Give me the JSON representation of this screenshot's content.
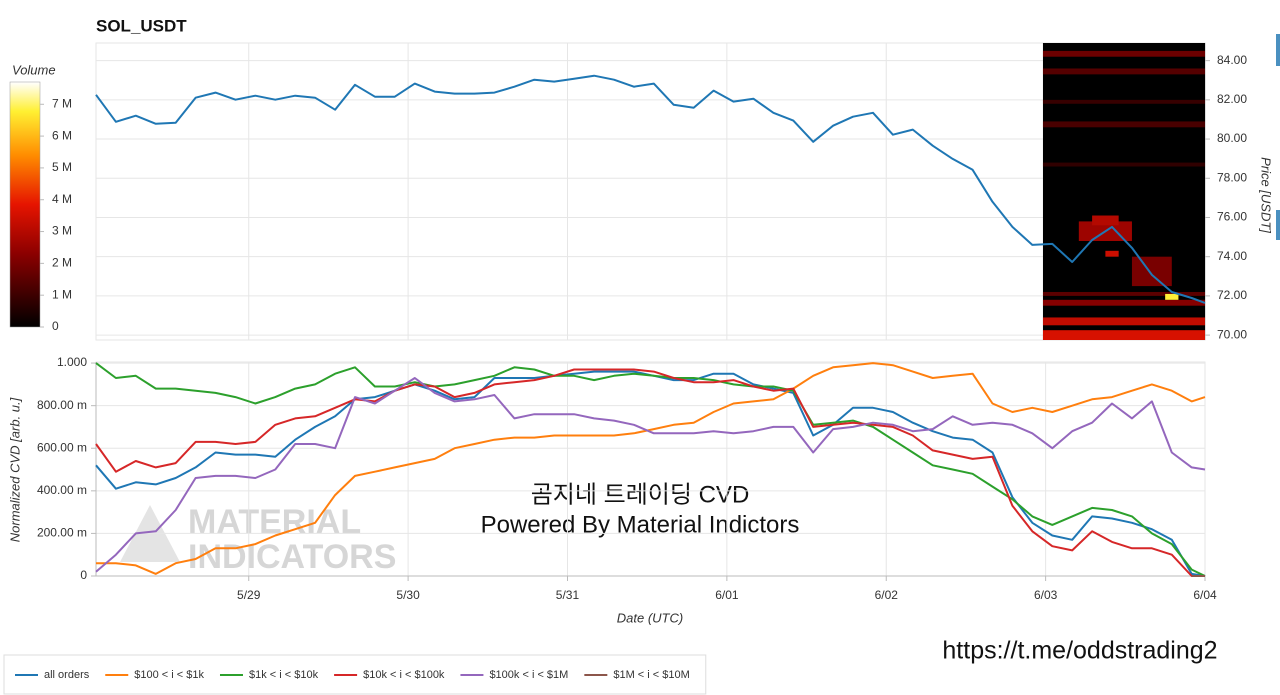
{
  "chart_data": [
    {
      "type": "line",
      "title": "SOL_USDT",
      "y_label": "Price [USDT]",
      "color": "#1f77b4",
      "x": [
        0,
        3,
        6,
        9,
        12,
        15,
        18,
        21,
        24,
        27,
        30,
        33,
        36,
        39,
        42,
        45,
        48,
        51,
        54,
        57,
        60,
        63,
        66,
        69,
        72,
        75,
        78,
        81,
        84,
        87,
        90,
        93,
        96,
        99,
        102,
        105,
        108,
        111,
        114,
        117,
        120,
        123,
        126,
        129,
        132,
        135,
        138,
        141,
        144,
        147,
        150,
        153,
        156,
        159,
        162,
        165,
        167
      ],
      "values": [
        82.26,
        80.88,
        81.19,
        80.78,
        80.83,
        82.11,
        82.37,
        82.01,
        82.21,
        82.01,
        82.21,
        82.11,
        81.5,
        82.77,
        82.16,
        82.16,
        82.83,
        82.42,
        82.32,
        82.32,
        82.37,
        82.67,
        83.03,
        82.93,
        83.08,
        83.23,
        83.03,
        82.67,
        82.83,
        81.75,
        81.6,
        82.47,
        81.91,
        82.06,
        81.34,
        80.94,
        79.86,
        80.68,
        81.14,
        81.34,
        80.22,
        80.48,
        79.66,
        78.99,
        78.43,
        76.8,
        75.52,
        74.6,
        74.65,
        73.73,
        74.85,
        75.52,
        74.45,
        73.07,
        72.2,
        71.89,
        71.64
      ],
      "xlim": [
        0,
        167
      ],
      "ylim": [
        69.75,
        84.9
      ],
      "yticks": [
        {
          "value": 70,
          "label": "70.00"
        },
        {
          "value": 72,
          "label": "72.00"
        },
        {
          "value": 74,
          "label": "74.00"
        },
        {
          "value": 76,
          "label": "76.00"
        },
        {
          "value": 78,
          "label": "78.00"
        },
        {
          "value": 80,
          "label": "80.00"
        },
        {
          "value": 82,
          "label": "82.00"
        },
        {
          "value": 84,
          "label": "84.00"
        }
      ],
      "grid": true,
      "heatmap": {
        "label": "Volume",
        "colorbar_lim": [
          0,
          7700000
        ],
        "colorbar_ticks": [
          0,
          {
            "value": 1000000,
            "label": "1 M"
          },
          {
            "value": 2000000,
            "label": "2 M"
          },
          {
            "value": 3000000,
            "label": "3 M"
          },
          {
            "value": 4000000,
            "label": "4 M"
          },
          {
            "value": 5000000,
            "label": "5 M"
          },
          {
            "value": 6000000,
            "label": "6 M"
          },
          {
            "value": 7000000,
            "label": "7 M"
          }
        ],
        "cells": [
          {
            "x": [
              142.6,
              167
            ],
            "price": [
              69.75,
              70.25
            ],
            "volume": 3600000
          },
          {
            "x": [
              142.6,
              167
            ],
            "price": [
              70.5,
              70.9
            ],
            "volume": 3200000
          },
          {
            "x": [
              142.6,
              167
            ],
            "price": [
              71.5,
              71.8
            ],
            "volume": 2200000
          },
          {
            "x": [
              142.6,
              167
            ],
            "price": [
              72.0,
              72.2
            ],
            "volume": 1500000
          },
          {
            "x": [
              142.6,
              167
            ],
            "price": [
              78.6,
              78.8
            ],
            "volume": 800000
          },
          {
            "x": [
              142.6,
              167
            ],
            "price": [
              80.6,
              80.9
            ],
            "volume": 1200000
          },
          {
            "x": [
              142.6,
              167
            ],
            "price": [
              81.8,
              82.0
            ],
            "volume": 900000
          },
          {
            "x": [
              142.6,
              167
            ],
            "price": [
              83.3,
              83.6
            ],
            "volume": 1400000
          },
          {
            "x": [
              142.6,
              167
            ],
            "price": [
              84.2,
              84.5
            ],
            "volume": 1800000
          },
          {
            "x": [
              148,
              156
            ],
            "price": [
              74.8,
              75.8
            ],
            "volume": 2600000
          },
          {
            "x": [
              150,
              154
            ],
            "price": [
              75.6,
              76.1
            ],
            "volume": 3000000
          },
          {
            "x": [
              152,
              154
            ],
            "price": [
              74.0,
              74.3
            ],
            "volume": 3400000
          },
          {
            "x": [
              156,
              162
            ],
            "price": [
              72.5,
              74.0
            ],
            "volume": 2000000
          },
          {
            "x": [
              161,
              163
            ],
            "price": [
              71.8,
              72.1
            ],
            "volume": 6800000
          }
        ]
      }
    },
    {
      "type": "line",
      "x_label": "Date (UTC)",
      "y_label": "Normalized CVD [arb. u.]",
      "x": [
        0,
        3,
        6,
        9,
        12,
        15,
        18,
        21,
        24,
        27,
        30,
        33,
        36,
        39,
        42,
        45,
        48,
        51,
        54,
        57,
        60,
        63,
        66,
        69,
        72,
        75,
        78,
        81,
        84,
        87,
        90,
        93,
        96,
        99,
        102,
        105,
        108,
        111,
        114,
        117,
        120,
        123,
        126,
        129,
        132,
        135,
        138,
        141,
        144,
        147,
        150,
        153,
        156,
        159,
        162,
        165,
        167
      ],
      "xlim": [
        0,
        167
      ],
      "ylim": [
        0,
        1.005
      ],
      "xticks": [
        {
          "value": 23,
          "label": "5/29"
        },
        {
          "value": 47,
          "label": "5/30"
        },
        {
          "value": 71,
          "label": "5/31"
        },
        {
          "value": 95,
          "label": "6/01"
        },
        {
          "value": 119,
          "label": "6/02"
        },
        {
          "value": 143,
          "label": "6/03"
        },
        {
          "value": 167,
          "label": "6/04"
        }
      ],
      "yticks": [
        0,
        {
          "value": 0.2,
          "label": "200.00 m"
        },
        {
          "value": 0.4,
          "label": "400.00 m"
        },
        {
          "value": 0.6,
          "label": "600.00 m"
        },
        {
          "value": 0.8,
          "label": "800.00 m"
        },
        {
          "value": 1,
          "label": "1.000"
        }
      ],
      "grid": true,
      "legend": "bottom-left",
      "series": [
        {
          "name": "all orders",
          "color": "#1f77b4",
          "values": [
            0.52,
            0.41,
            0.44,
            0.43,
            0.46,
            0.51,
            0.58,
            0.57,
            0.57,
            0.56,
            0.64,
            0.7,
            0.75,
            0.83,
            0.84,
            0.87,
            0.9,
            0.87,
            0.83,
            0.84,
            0.93,
            0.93,
            0.93,
            0.94,
            0.95,
            0.96,
            0.96,
            0.96,
            0.94,
            0.92,
            0.92,
            0.95,
            0.95,
            0.9,
            0.88,
            0.86,
            0.66,
            0.71,
            0.79,
            0.79,
            0.77,
            0.72,
            0.68,
            0.65,
            0.64,
            0.58,
            0.37,
            0.25,
            0.19,
            0.17,
            0.28,
            0.27,
            0.25,
            0.22,
            0.17,
            0.01,
            0
          ]
        },
        {
          "name": "$100 < i < $1k",
          "color": "#ff7f0e",
          "values": [
            0.06,
            0.06,
            0.05,
            0.01,
            0.06,
            0.08,
            0.13,
            0.13,
            0.15,
            0.19,
            0.22,
            0.25,
            0.38,
            0.47,
            0.49,
            0.51,
            0.53,
            0.55,
            0.6,
            0.62,
            0.64,
            0.65,
            0.65,
            0.66,
            0.66,
            0.66,
            0.66,
            0.67,
            0.69,
            0.71,
            0.72,
            0.77,
            0.81,
            0.82,
            0.83,
            0.88,
            0.94,
            0.98,
            0.99,
            1.0,
            0.99,
            0.96,
            0.93,
            0.94,
            0.95,
            0.81,
            0.77,
            0.79,
            0.77,
            0.8,
            0.83,
            0.84,
            0.87,
            0.9,
            0.87,
            0.82,
            0.84
          ]
        },
        {
          "name": "$1k < i < $10k",
          "color": "#2ca02c",
          "values": [
            1.0,
            0.93,
            0.94,
            0.88,
            0.88,
            0.87,
            0.86,
            0.84,
            0.81,
            0.84,
            0.88,
            0.9,
            0.95,
            0.98,
            0.89,
            0.89,
            0.91,
            0.89,
            0.9,
            0.92,
            0.94,
            0.98,
            0.97,
            0.94,
            0.94,
            0.92,
            0.94,
            0.95,
            0.94,
            0.93,
            0.93,
            0.92,
            0.9,
            0.89,
            0.89,
            0.87,
            0.71,
            0.72,
            0.73,
            0.7,
            0.64,
            0.58,
            0.52,
            0.5,
            0.48,
            0.42,
            0.36,
            0.28,
            0.24,
            0.28,
            0.32,
            0.31,
            0.28,
            0.2,
            0.15,
            0.03,
            0
          ]
        },
        {
          "name": "$10k < i < $100k",
          "color": "#d62728",
          "values": [
            0.62,
            0.49,
            0.54,
            0.51,
            0.53,
            0.63,
            0.63,
            0.62,
            0.63,
            0.71,
            0.74,
            0.75,
            0.79,
            0.83,
            0.82,
            0.87,
            0.9,
            0.89,
            0.84,
            0.86,
            0.9,
            0.91,
            0.92,
            0.94,
            0.97,
            0.97,
            0.97,
            0.97,
            0.96,
            0.93,
            0.91,
            0.91,
            0.92,
            0.89,
            0.87,
            0.88,
            0.7,
            0.71,
            0.72,
            0.71,
            0.7,
            0.66,
            0.59,
            0.57,
            0.55,
            0.56,
            0.33,
            0.21,
            0.14,
            0.12,
            0.21,
            0.16,
            0.13,
            0.13,
            0.1,
            0,
            0
          ]
        },
        {
          "name": "$100k < i < $1M",
          "color": "#9467bd",
          "values": [
            0.02,
            0.1,
            0.2,
            0.21,
            0.31,
            0.46,
            0.47,
            0.47,
            0.46,
            0.5,
            0.62,
            0.62,
            0.6,
            0.84,
            0.81,
            0.87,
            0.93,
            0.86,
            0.82,
            0.83,
            0.85,
            0.74,
            0.76,
            0.76,
            0.76,
            0.74,
            0.73,
            0.71,
            0.67,
            0.67,
            0.67,
            0.68,
            0.67,
            0.68,
            0.7,
            0.7,
            0.58,
            0.69,
            0.7,
            0.72,
            0.71,
            0.68,
            0.69,
            0.75,
            0.71,
            0.72,
            0.71,
            0.67,
            0.6,
            0.68,
            0.72,
            0.81,
            0.74,
            0.82,
            0.58,
            0.51,
            0.5
          ]
        },
        {
          "name": "$1M < i < $10M",
          "color": "#8c564b",
          "values": [
            null,
            null,
            null,
            null,
            null,
            null,
            null,
            null,
            null,
            null,
            null,
            null,
            null,
            null,
            null,
            null,
            null,
            null,
            null,
            null,
            null,
            null,
            null,
            null,
            null,
            null,
            null,
            null,
            null,
            null,
            null,
            null,
            null,
            null,
            null,
            null,
            null,
            null,
            null,
            null,
            null,
            null,
            null,
            null,
            null,
            null,
            null,
            null,
            null,
            null,
            null,
            null,
            null,
            null,
            null,
            0,
            0
          ]
        }
      ],
      "annotations": [
        "곰지네 트레이딩 CVD",
        "Powered By Material Indictors",
        "MATERIAL",
        "INDICATORS",
        "https://t.me/oddstrading2"
      ]
    }
  ]
}
